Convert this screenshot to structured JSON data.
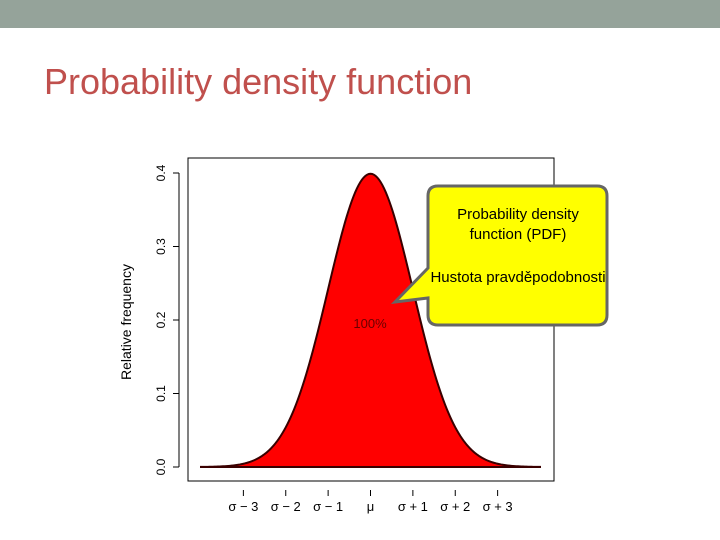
{
  "slide": {
    "title": "Probability density function"
  },
  "callout": {
    "line1": "Probability density function (PDF)",
    "line2": "Hustota pravděpodobnosti",
    "fill_color": "#ffff00",
    "border_color": "#666666"
  },
  "chart_data": {
    "type": "area",
    "distribution": "normal",
    "mean": 0,
    "sd": 1,
    "xlim": [
      -4,
      4
    ],
    "ylim": [
      0,
      0.4
    ],
    "ylabel": "Relative frequency",
    "xlabel": "",
    "y_ticks": [
      "0.0",
      "0.1",
      "0.2",
      "0.3",
      "0.4"
    ],
    "y_tick_values": [
      0,
      0.1,
      0.2,
      0.3,
      0.4
    ],
    "x_tick_values": [
      -3,
      -2,
      -1,
      0,
      1,
      2,
      3
    ],
    "x_tick_labels": [
      "σ − 3",
      "σ − 2",
      "σ − 1",
      "μ",
      "σ + 1",
      "σ + 2",
      "σ + 3"
    ],
    "annotation": "100%",
    "fill_color": "#ff0000",
    "line_color": "#3a0000"
  }
}
